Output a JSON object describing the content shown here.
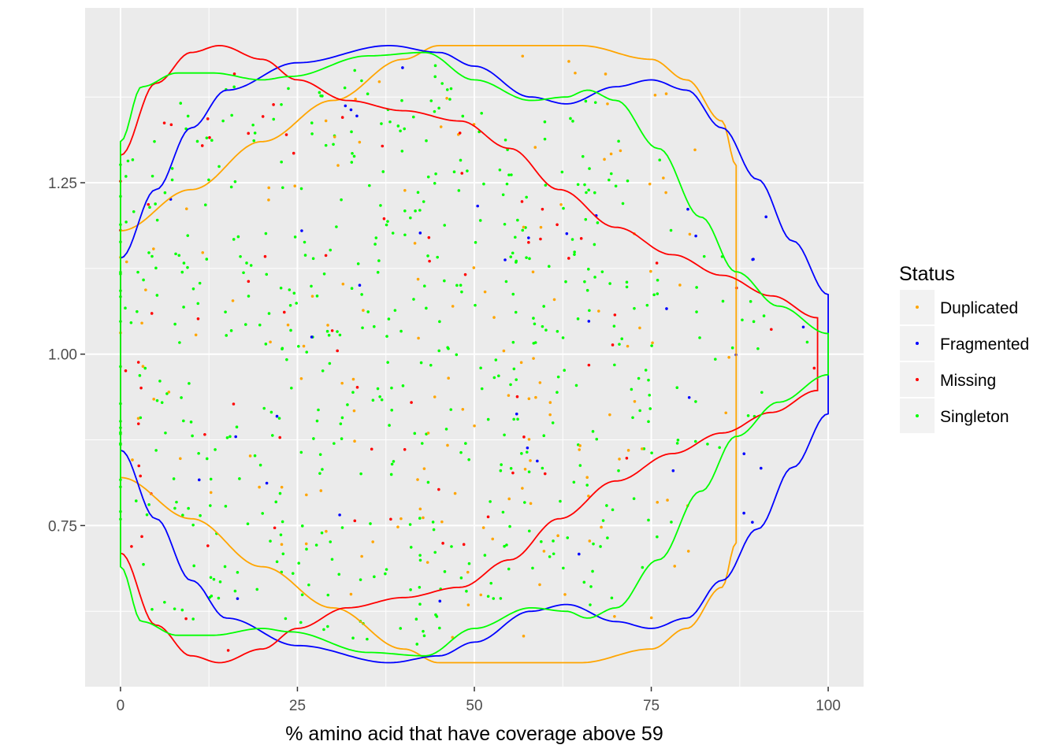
{
  "chart_data": {
    "type": "scatter",
    "subtype": "jittered points with violin outlines",
    "title": "",
    "xlabel": "% amino acid that have coverage above 59",
    "ylabel": "",
    "xlim": [
      -5,
      105
    ],
    "ylim": [
      0.515,
      1.505
    ],
    "x_ticks": [
      0,
      25,
      50,
      75,
      100
    ],
    "x_tick_labels": [
      "0",
      "25",
      "50",
      "75",
      "100"
    ],
    "y_ticks": [
      0.75,
      1.0,
      1.25
    ],
    "y_tick_labels": [
      "0.75",
      "1.00",
      "1.25"
    ],
    "grid": true,
    "legend": {
      "title": "Status",
      "position": "right",
      "entries": [
        "Duplicated",
        "Fragmented",
        "Missing",
        "Singleton"
      ]
    },
    "colors": {
      "Duplicated": "#FFA500",
      "Fragmented": "#0000FF",
      "Missing": "#FF0000",
      "Singleton": "#00FF00",
      "panel_background": "#EBEBEB",
      "grid": "#FFFFFF"
    },
    "violins": [
      {
        "name": "Duplicated",
        "center": 1.0,
        "half_width": [
          [
            0,
            0.18
          ],
          [
            10,
            0.24
          ],
          [
            20,
            0.31
          ],
          [
            30,
            0.37
          ],
          [
            40,
            0.43
          ],
          [
            45,
            0.45
          ],
          [
            55,
            0.45
          ],
          [
            65,
            0.45
          ],
          [
            75,
            0.43
          ],
          [
            80,
            0.4
          ],
          [
            85,
            0.34
          ],
          [
            87,
            0.275
          ],
          [
            87,
            0.28
          ]
        ]
      },
      {
        "name": "Fragmented",
        "center": 1.0,
        "half_width": [
          [
            0,
            0.14
          ],
          [
            5,
            0.24
          ],
          [
            10,
            0.33
          ],
          [
            15,
            0.385
          ],
          [
            25,
            0.425
          ],
          [
            38,
            0.45
          ],
          [
            45,
            0.44
          ],
          [
            50,
            0.42
          ],
          [
            58,
            0.375
          ],
          [
            63,
            0.365
          ],
          [
            70,
            0.39
          ],
          [
            75,
            0.4
          ],
          [
            80,
            0.385
          ],
          [
            85,
            0.33
          ],
          [
            90,
            0.255
          ],
          [
            95,
            0.165
          ],
          [
            100,
            0.087
          ]
        ]
      },
      {
        "name": "Missing",
        "center": 1.0,
        "half_width": [
          [
            0,
            0.29
          ],
          [
            5,
            0.395
          ],
          [
            10,
            0.44
          ],
          [
            14,
            0.45
          ],
          [
            20,
            0.43
          ],
          [
            25,
            0.4
          ],
          [
            32,
            0.37
          ],
          [
            40,
            0.355
          ],
          [
            48,
            0.34
          ],
          [
            55,
            0.3
          ],
          [
            62,
            0.24
          ],
          [
            70,
            0.185
          ],
          [
            78,
            0.145
          ],
          [
            85,
            0.115
          ],
          [
            92,
            0.085
          ],
          [
            98.5,
            0.053
          ]
        ]
      },
      {
        "name": "Singleton",
        "center": 1.0,
        "half_width": [
          [
            0,
            0.31
          ],
          [
            3,
            0.39
          ],
          [
            8,
            0.41
          ],
          [
            13,
            0.41
          ],
          [
            20,
            0.4
          ],
          [
            24,
            0.405
          ],
          [
            35,
            0.435
          ],
          [
            43,
            0.44
          ],
          [
            50,
            0.4
          ],
          [
            58,
            0.37
          ],
          [
            63,
            0.375
          ],
          [
            66,
            0.385
          ],
          [
            70,
            0.37
          ],
          [
            76,
            0.3
          ],
          [
            82,
            0.2
          ],
          [
            87,
            0.12
          ],
          [
            93,
            0.07
          ],
          [
            100,
            0.03
          ]
        ]
      }
    ]
  }
}
